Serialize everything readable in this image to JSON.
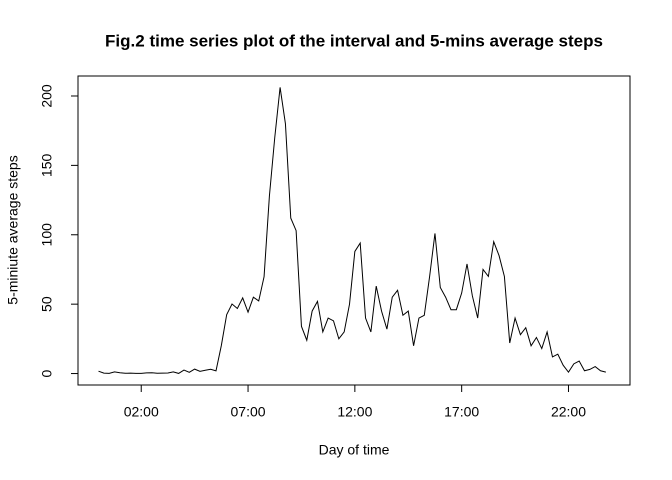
{
  "chart_data": {
    "type": "line",
    "title": "Fig.2 time series plot of the interval and 5-mins average steps",
    "x_label": "Day of time",
    "y_label": "5-miniute average steps",
    "color": "#000000",
    "x": [
      0,
      0.25,
      0.5,
      0.75,
      1,
      1.25,
      1.5,
      1.75,
      2,
      2.25,
      2.5,
      2.75,
      3,
      3.25,
      3.5,
      3.75,
      4,
      4.25,
      4.5,
      4.75,
      5,
      5.25,
      5.5,
      5.75,
      6,
      6.25,
      6.5,
      6.75,
      7,
      7.25,
      7.5,
      7.75,
      8,
      8.25,
      8.5,
      8.75,
      9,
      9.25,
      9.5,
      9.75,
      10,
      10.25,
      10.5,
      10.75,
      11,
      11.25,
      11.5,
      11.75,
      12,
      12.25,
      12.5,
      12.75,
      13,
      13.25,
      13.5,
      13.75,
      14,
      14.25,
      14.5,
      14.75,
      15,
      15.25,
      15.5,
      15.75,
      16,
      16.25,
      16.5,
      16.75,
      17,
      17.25,
      17.5,
      17.75,
      18,
      18.25,
      18.5,
      18.75,
      19,
      19.25,
      19.5,
      19.75,
      20,
      20.25,
      20.5,
      20.75,
      21,
      21.25,
      21.5,
      21.75,
      22,
      22.25,
      22.5,
      22.75,
      23,
      23.25,
      23.5,
      23.75
    ],
    "values": [
      1.7,
      0.3,
      0.1,
      1.2,
      0.6,
      0.2,
      0.3,
      0.1,
      0.1,
      0.5,
      0.6,
      0.2,
      0.3,
      0.4,
      1.2,
      0.1,
      2.5,
      0.9,
      3.2,
      1.6,
      2.4,
      3.1,
      1.9,
      20.2,
      42.4,
      50.1,
      46.9,
      54.5,
      44.2,
      55,
      52.3,
      69.8,
      128,
      170,
      206.2,
      180,
      112,
      103,
      34,
      24,
      45,
      52,
      30,
      40,
      38,
      25,
      30,
      50,
      88,
      94,
      40,
      30,
      63,
      45,
      32,
      55,
      60,
      42,
      45,
      20,
      40,
      42,
      70,
      101,
      62,
      55,
      46,
      46,
      58,
      79,
      56,
      40,
      75,
      70,
      95,
      85,
      70,
      22,
      40,
      28,
      33,
      20,
      26,
      18,
      30,
      12,
      14,
      6,
      1,
      7,
      9,
      2,
      3,
      5,
      2,
      1
    ],
    "xlim": [
      -0.96,
      24.88
    ],
    "ylim": [
      -8.25,
      214.4
    ],
    "xticks": [
      {
        "value": 2,
        "label": "02:00"
      },
      {
        "value": 7,
        "label": "07:00"
      },
      {
        "value": 12,
        "label": "12:00"
      },
      {
        "value": 17,
        "label": "17:00"
      },
      {
        "value": 22,
        "label": "22:00"
      }
    ],
    "yticks": [
      0,
      50,
      100,
      150,
      200
    ],
    "grid": false
  }
}
